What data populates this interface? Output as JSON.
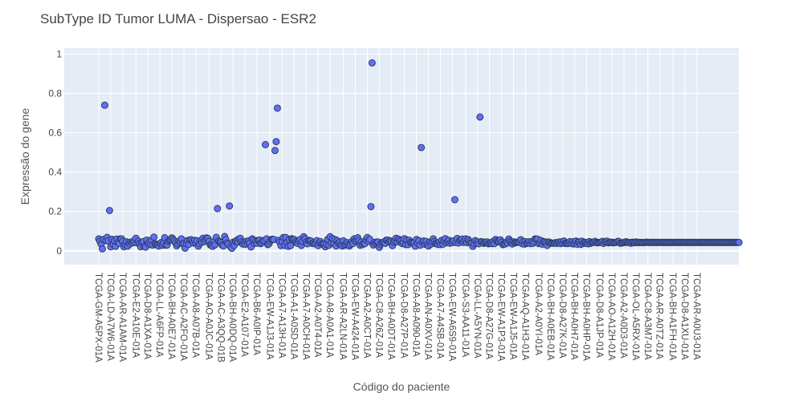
{
  "chart_data": {
    "type": "scatter",
    "title": "SubType ID Tumor LUMA - Dispersao - ESR2",
    "xlabel": "Código do paciente",
    "ylabel": "Expressão do gene",
    "ylim": [
      -0.07,
      1.03
    ],
    "yticks": [
      0,
      0.2,
      0.4,
      0.6,
      0.8,
      1
    ],
    "ytick_labels": [
      "0",
      "0.2",
      "0.4",
      "0.6",
      "0.8",
      "1"
    ],
    "grid": true,
    "marker_color": "#636efa",
    "marker_outline": "#2a3f5f",
    "plot_background": "#e5ecf6",
    "n_patients": 500,
    "xtick_labels": [
      "TCGA-GM-A5PX-01A",
      "TCGA-LD-A7W6-01A",
      "TCGA-AR-A1AM-01A",
      "TCGA-E2-A10E-01A",
      "TCGA-D8-A1XA-01A",
      "TCGA-LL-A6FP-01A",
      "TCGA-BH-A0E7-01A",
      "TCGA-AC-A2FO-01A",
      "TCGA-A8-A07B-01A",
      "TCGA-AO-A0JC-01A",
      "TCGA-AC-A3QQ-01B",
      "TCGA-BH-A0DQ-01A",
      "TCGA-E2-A107-01A",
      "TCGA-B6-A0IP-01A",
      "TCGA-EW-A1J3-01A",
      "TCGA-A7-A13H-01A",
      "TCGA-A1-A0SD-01A",
      "TCGA-A7-A0CH-01A",
      "TCGA-A2-A0T4-01A",
      "TCGA-A8-A0A1-01A",
      "TCGA-AR-A2LN-01A",
      "TCGA-EW-A424-01A",
      "TCGA-A2-A0CT-01A",
      "TCGA-C8-A26Z-01A",
      "TCGA-BH-A0DT-01A",
      "TCGA-D8-A27P-01A",
      "TCGA-A8-A090-01A",
      "TCGA-AN-A0XV-01A",
      "TCGA-A7-A4SB-01A",
      "TCGA-EW-A6S9-01A",
      "TCGA-S3-AA11-01A",
      "TCGA-LL-A5YN-01A",
      "TCGA-D8-A27G-01A",
      "TCGA-EW-A1P3-01A",
      "TCGA-EW-A1J5-01A",
      "TCGA-AQ-A1H3-01A",
      "TCGA-A2-A0YI-01A",
      "TCGA-BH-A0EB-01A",
      "TCGA-D8-A27K-01A",
      "TCGA-BH-A0H7-01A",
      "TCGA-BH-A0HP-01A",
      "TCGA-D8-A1JP-01A",
      "TCGA-AO-A12H-01A",
      "TCGA-A2-A0D3-01A",
      "TCGA-OL-A5RX-01A",
      "TCGA-C8-A3M7-01A",
      "TCGA-AR-A0TZ-01A",
      "TCGA-BH-A1FH-01A",
      "TCGA-D8-A1XU-01A",
      "TCGA-AR-A0U3-01A"
    ],
    "outliers": [
      {
        "x": 5,
        "y": 0.74
      },
      {
        "x": 139,
        "y": 0.54
      },
      {
        "x": 147,
        "y": 0.51
      },
      {
        "x": 148,
        "y": 0.555
      },
      {
        "x": 149,
        "y": 0.725
      },
      {
        "x": 228,
        "y": 0.955
      },
      {
        "x": 227,
        "y": 0.225
      },
      {
        "x": 269,
        "y": 0.525
      },
      {
        "x": 297,
        "y": 0.26
      },
      {
        "x": 318,
        "y": 0.68
      },
      {
        "x": 9,
        "y": 0.205
      },
      {
        "x": 99,
        "y": 0.215
      },
      {
        "x": 109,
        "y": 0.228
      }
    ],
    "y": [
      0.061,
      0.048,
      0.034,
      0.01,
      0.058,
      0.062,
      0.052,
      0.069,
      0.051,
      0.097,
      0.021,
      0.059,
      0.033,
      0.052,
      0.023,
      0.06,
      0.043,
      0.038,
      0.061,
      0.061,
      0.049,
      0.021,
      0.033,
      0.046,
      0.024,
      0.041,
      0.035,
      0.045,
      0.041,
      0.049,
      0.043,
      0.064,
      0.04,
      0.049,
      0.038,
      0.021,
      0.044,
      0.047,
      0.023,
      0.019,
      0.055,
      0.037,
      0.043,
      0.032,
      0.055,
      0.03,
      0.07,
      0.036,
      0.031,
      0.032,
      0.025,
      0.037,
      0.042,
      0.029,
      0.039,
      0.067,
      0.029,
      0.03,
      0.049,
      0.055,
      0.057,
      0.066,
      0.059,
      0.05,
      0.04,
      0.026,
      0.036,
      0.049,
      0.041,
      0.061,
      0.036,
      0.038,
      0.014,
      0.037,
      0.052,
      0.033,
      0.056,
      0.057,
      0.048,
      0.04,
      0.054,
      0.039,
      0.051,
      0.024,
      0.037,
      0.052,
      0.044,
      0.064,
      0.047,
      0.057,
      0.066,
      0.063,
      0.048,
      0.03,
      0.031,
      0.023,
      0.047,
      0.031,
      0.069,
      0.025,
      0.05,
      0.046,
      0.042,
      0.029,
      0.025,
      0.073,
      0.057,
      0.04,
      0.034,
      0.051,
      0.021,
      0.013,
      0.044,
      0.028,
      0.048,
      0.053,
      0.045,
      0.061,
      0.064,
      0.045,
      0.035,
      0.042,
      0.033,
      0.048,
      0.039,
      0.051,
      0.04,
      0.02,
      0.061,
      0.055,
      0.038,
      0.049,
      0.039,
      0.054,
      0.055,
      0.037,
      0.042,
      0.052,
      0.052,
      0.032,
      0.061,
      0.032,
      0.036,
      0.049,
      0.058,
      0.059,
      0.058,
      0.056,
      0.042,
      0.057,
      0.053,
      0.044,
      0.027,
      0.047,
      0.068,
      0.028,
      0.068,
      0.043,
      0.023,
      0.058,
      0.027,
      0.062,
      0.058,
      0.058,
      0.047,
      0.041,
      0.038,
      0.05,
      0.058,
      0.028,
      0.047,
      0.072,
      0.061,
      0.044,
      0.036,
      0.053,
      0.052,
      0.05,
      0.038,
      0.041,
      0.036,
      0.041,
      0.052,
      0.027,
      0.042,
      0.047,
      0.036,
      0.033,
      0.035,
      0.021,
      0.032,
      0.059,
      0.029,
      0.072,
      0.04,
      0.062,
      0.039,
      0.058,
      0.025,
      0.052,
      0.04,
      0.044,
      0.031,
      0.025,
      0.051,
      0.028,
      0.033,
      0.042,
      0.033,
      0.025,
      0.033,
      0.047,
      0.037,
      0.061,
      0.05,
      0.057,
      0.067,
      0.052,
      0.029,
      0.045,
      0.032,
      0.038,
      0.037,
      0.057,
      0.068,
      0.049,
      0.059,
      0.049,
      0.047,
      0.03,
      0.043,
      0.037,
      0.045,
      0.045,
      0.018,
      0.032,
      0.042,
      0.042,
      0.046,
      0.038,
      0.055,
      0.055,
      0.046,
      0.051,
      0.047,
      0.027,
      0.045,
      0.052,
      0.064,
      0.046,
      0.06,
      0.054,
      0.048,
      0.037,
      0.043,
      0.062,
      0.032,
      0.055,
      0.032,
      0.054,
      0.043,
      0.041,
      0.038,
      0.041,
      0.024,
      0.058,
      0.039,
      0.052,
      0.029,
      0.033,
      0.045,
      0.05,
      0.034,
      0.048,
      0.032,
      0.025,
      0.044,
      0.034,
      0.046,
      0.061,
      0.047,
      0.037,
      0.036,
      0.033,
      0.044,
      0.032,
      0.053,
      0.034,
      0.05,
      0.062,
      0.041,
      0.048,
      0.054,
      0.039,
      0.047,
      0.042,
      0.051,
      0.049,
      0.043,
      0.063,
      0.04,
      0.052,
      0.057,
      0.06,
      0.043,
      0.052,
      0.061,
      0.042,
      0.058,
      0.049,
      0.04,
      0.038,
      0.023,
      0.036,
      0.052,
      0.039,
      0.046,
      0.036,
      0.045,
      0.047,
      0.045,
      0.038,
      0.043,
      0.045,
      0.045,
      0.036,
      0.039,
      0.042,
      0.037,
      0.048,
      0.037,
      0.058,
      0.05,
      0.046,
      0.046,
      0.056,
      0.043,
      0.032,
      0.036,
      0.035,
      0.044,
      0.04,
      0.06,
      0.049,
      0.043,
      0.035,
      0.046,
      0.041,
      0.042,
      0.044,
      0.044,
      0.044,
      0.057,
      0.037,
      0.046,
      0.034,
      0.047,
      0.038,
      0.04,
      0.046,
      0.037,
      0.047,
      0.038,
      0.047,
      0.061,
      0.059,
      0.06,
      0.037,
      0.042,
      0.052,
      0.034,
      0.047,
      0.046,
      0.041,
      0.028,
      0.045,
      0.044,
      0.039,
      0.039,
      0.039,
      0.039,
      0.042,
      0.038,
      0.043,
      0.045,
      0.037,
      0.046,
      0.039,
      0.05,
      0.038,
      0.04,
      0.037,
      0.039,
      0.047,
      0.038,
      0.046,
      0.035,
      0.043,
      0.05,
      0.034,
      0.045,
      0.046,
      0.033,
      0.049,
      0.037,
      0.044,
      0.042,
      0.038,
      0.036,
      0.047,
      0.038,
      0.044,
      0.043,
      0.043,
      0.048,
      0.043,
      0.041,
      0.042,
      0.043,
      0.044,
      0.048,
      0.038,
      0.047,
      0.045,
      0.049,
      0.041,
      0.042,
      0.044,
      0.044,
      0.041,
      0.042,
      0.043,
      0.044,
      0.048,
      0.047,
      0.039,
      0.04,
      0.041,
      0.042,
      0.045,
      0.046,
      0.043,
      0.043,
      0.042,
      0.039,
      0.044,
      0.043,
      0.041,
      0.045,
      0.044,
      0.042,
      0.043,
      0.043,
      0.043,
      0.042,
      0.043,
      0.043,
      0.044,
      0.043,
      0.043,
      0.043,
      0.043,
      0.043,
      0.043,
      0.043,
      0.043,
      0.043,
      0.043,
      0.043,
      0.043,
      0.043,
      0.043,
      0.043,
      0.043,
      0.043,
      0.043,
      0.043,
      0.043,
      0.043,
      0.043,
      0.043,
      0.043,
      0.043,
      0.043,
      0.043,
      0.043,
      0.043,
      0.043,
      0.043,
      0.043,
      0.043,
      0.043,
      0.043,
      0.043,
      0.043,
      0.043,
      0.043,
      0.043,
      0.043,
      0.043,
      0.043,
      0.043,
      0.043,
      0.043,
      0.043,
      0.043,
      0.043,
      0.043,
      0.043,
      0.043,
      0.043,
      0.043,
      0.043,
      0.043,
      0.043,
      0.043,
      0.043,
      0.043,
      0.043,
      0.043,
      0.043,
      0.043,
      0.043,
      0.043,
      0.043,
      0.043,
      0.043,
      0.043,
      0.043,
      0.043,
      0.043,
      0.043,
      0.043,
      0.043,
      0.043
    ]
  }
}
